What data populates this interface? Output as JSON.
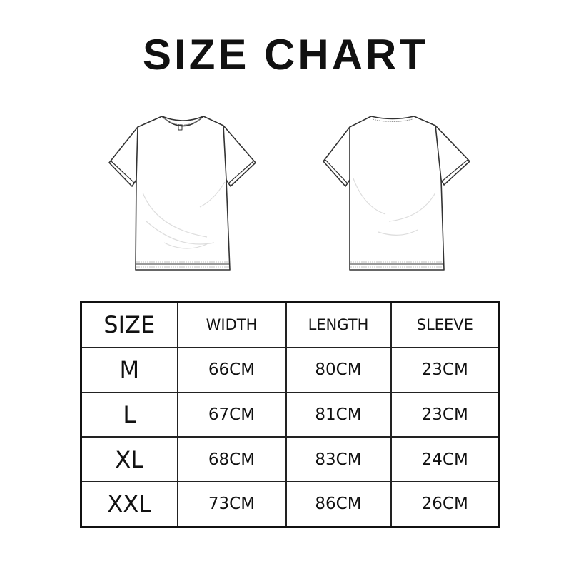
{
  "title": "SIZE CHART",
  "illustrations": [
    "t-shirt-front",
    "t-shirt-back"
  ],
  "table": {
    "headers": [
      "SIZE",
      "WIDTH",
      "LENGTH",
      "SLEEVE"
    ],
    "rows": [
      [
        "M",
        "66CM",
        "80CM",
        "23CM"
      ],
      [
        "L",
        "67CM",
        "81CM",
        "23CM"
      ],
      [
        "XL",
        "68CM",
        "83CM",
        "24CM"
      ],
      [
        "XXL",
        "73CM",
        "86CM",
        "26CM"
      ]
    ]
  }
}
